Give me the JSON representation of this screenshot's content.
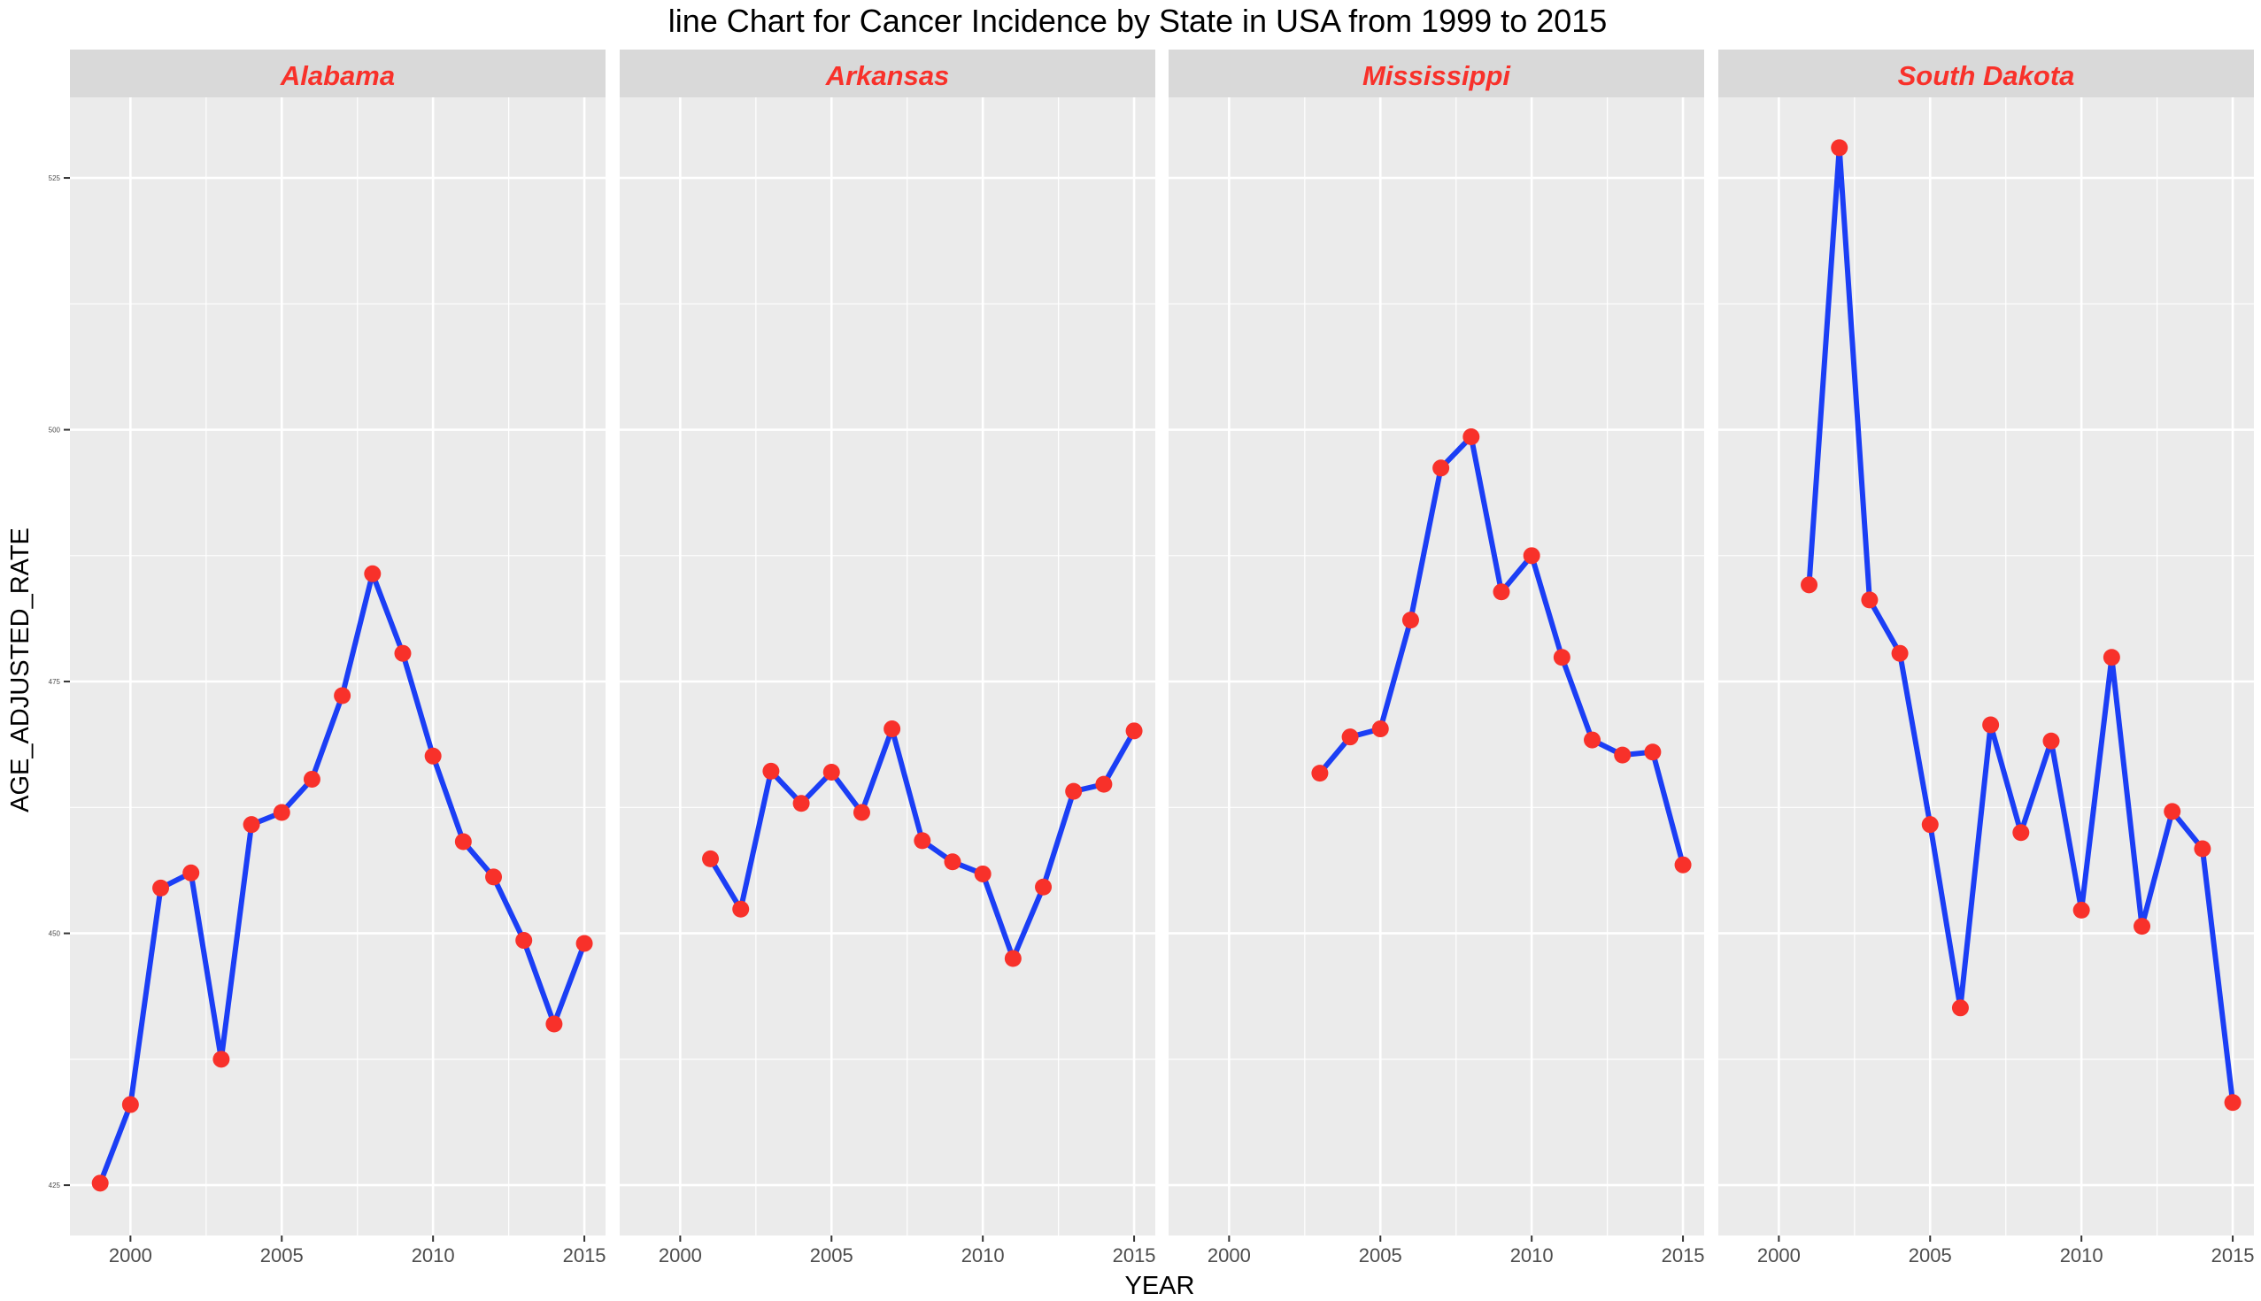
{
  "chart_data": {
    "type": "line",
    "title": "line Chart for Cancer Incidence by State in USA from 1999 to 2015",
    "xlabel": "YEAR",
    "ylabel": "AGE_ADJUSTED_RATE",
    "xlim": [
      1998,
      2015.7
    ],
    "ylim": [
      420,
      533
    ],
    "x_ticks": [
      "2000",
      "2005",
      "2010",
      "2015"
    ],
    "y_ticks": [
      "425",
      "450",
      "475",
      "500",
      "525"
    ],
    "grid": true,
    "legend": "none",
    "colors": {
      "line": "#1b3ef5",
      "point": "#f8312a",
      "strip_text": "#f8312a",
      "strip_bg": "#d9d9d9",
      "panel_bg": "#ebebeb",
      "grid": "#ffffff"
    },
    "panels": [
      {
        "name": "Alabama",
        "x": [
          1999,
          2000,
          2001,
          2002,
          2003,
          2004,
          2005,
          2006,
          2007,
          2008,
          2009,
          2010,
          2011,
          2012,
          2013,
          2014,
          2015
        ],
        "y": [
          425.2,
          433.0,
          454.5,
          456.0,
          437.5,
          460.8,
          462.0,
          465.3,
          473.6,
          485.7,
          477.8,
          467.6,
          459.1,
          455.6,
          449.3,
          441.0,
          449.0
        ]
      },
      {
        "name": "Arkansas",
        "x": [
          2001,
          2002,
          2003,
          2004,
          2005,
          2006,
          2007,
          2008,
          2009,
          2010,
          2011,
          2012,
          2013,
          2014,
          2015
        ],
        "y": [
          457.4,
          452.4,
          466.1,
          462.9,
          466.0,
          462.0,
          470.3,
          459.2,
          457.1,
          455.9,
          447.5,
          454.6,
          464.1,
          464.8,
          470.1
        ]
      },
      {
        "name": "Mississippi",
        "x": [
          2003,
          2004,
          2005,
          2006,
          2007,
          2008,
          2009,
          2010,
          2011,
          2012,
          2013,
          2014,
          2015
        ],
        "y": [
          465.9,
          469.5,
          470.3,
          481.1,
          496.2,
          499.3,
          483.9,
          487.5,
          477.4,
          469.2,
          467.7,
          468.0,
          456.8
        ]
      },
      {
        "name": "South Dakota",
        "x": [
          2001,
          2002,
          2003,
          2004,
          2005,
          2006,
          2007,
          2008,
          2009,
          2010,
          2011,
          2012,
          2013,
          2014,
          2015
        ],
        "y": [
          484.6,
          528.0,
          483.1,
          477.8,
          460.8,
          442.6,
          470.7,
          460.0,
          469.1,
          452.3,
          477.4,
          450.7,
          462.1,
          458.4,
          433.2
        ]
      }
    ]
  }
}
